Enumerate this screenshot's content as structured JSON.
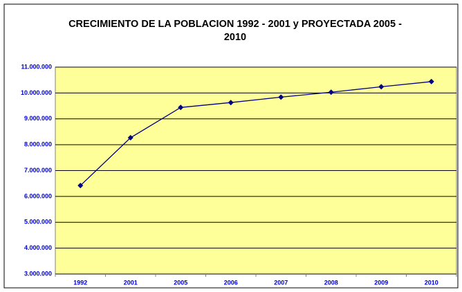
{
  "chart_data": {
    "type": "line",
    "title": "CRECIMIENTO DE LA POBLACION 1992 - 2001 y PROYECTADA 2005 - 2010",
    "categories": [
      "1992",
      "2001",
      "2005",
      "2006",
      "2007",
      "2008",
      "2009",
      "2010"
    ],
    "values": [
      6420000,
      8270000,
      9440000,
      9630000,
      9840000,
      10030000,
      10240000,
      10440000
    ],
    "color": "#000080",
    "ylim": [
      3000000,
      11000000
    ],
    "yticks": [
      {
        "value": 3000000,
        "label": "3.000.000"
      },
      {
        "value": 4000000,
        "label": "4.000.000"
      },
      {
        "value": 5000000,
        "label": "5.000.000"
      },
      {
        "value": 6000000,
        "label": "6.000.000"
      },
      {
        "value": 7000000,
        "label": "7.000.000"
      },
      {
        "value": 8000000,
        "label": "8.000.000"
      },
      {
        "value": 9000000,
        "label": "9.000.000"
      },
      {
        "value": 10000000,
        "label": "10.000.000"
      },
      {
        "value": 11000000,
        "label": "11.000.000"
      }
    ],
    "grid": true
  }
}
